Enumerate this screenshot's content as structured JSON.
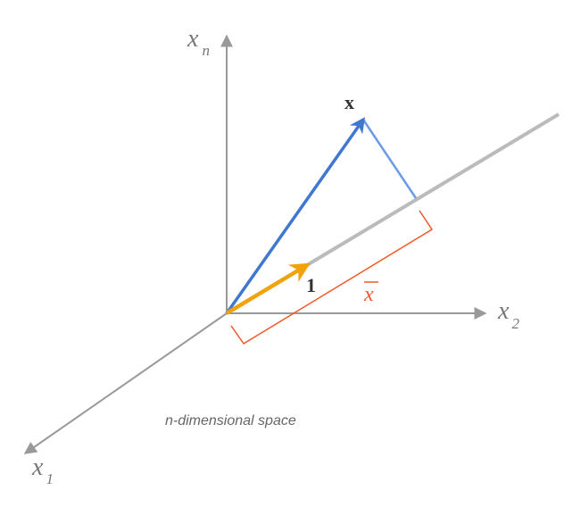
{
  "labels": {
    "axis_n": "x",
    "axis_n_sub": "n",
    "axis_2": "x",
    "axis_2_sub": "2",
    "axis_1": "x",
    "axis_1_sub": "1",
    "vector_x": "x",
    "vector_one": "1",
    "mean": "x",
    "caption": "n-dimensional space"
  },
  "colors": {
    "axis": "#999999",
    "line_along_one": "#bbbbbb",
    "vector_x": "#3f78d1",
    "projection": "#6a9de6",
    "vector_one": "#f0a30a",
    "mean_bracket": "#ef5a2a"
  }
}
